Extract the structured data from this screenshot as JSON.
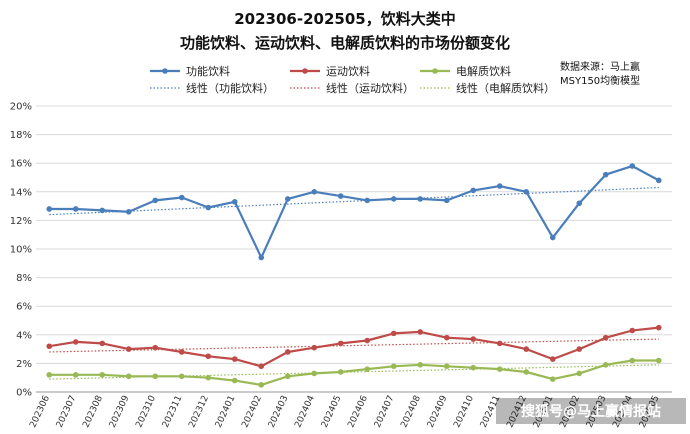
{
  "chart_data": {
    "type": "line",
    "title_line1": "202306-202505，饮料大类中",
    "title_line2": "功能饮料、运动饮料、电解质饮料的市场份额变化",
    "source_line1": "数据来源：马上赢",
    "source_line2": "MSY150均衡模型",
    "watermark": "搜狐号@马上赢情报站",
    "xlabel": "",
    "ylabel": "",
    "ylim": [
      0,
      20
    ],
    "y_ticks": [
      0,
      2,
      4,
      6,
      8,
      10,
      12,
      14,
      16,
      18,
      20
    ],
    "y_tick_labels": [
      "0%",
      "2%",
      "4%",
      "6%",
      "8%",
      "10%",
      "12%",
      "14%",
      "16%",
      "18%",
      "20%"
    ],
    "grid": true,
    "legend_position": "top",
    "categories": [
      "202306",
      "202307",
      "202308",
      "202309",
      "202310",
      "202311",
      "202312",
      "202401",
      "202402",
      "202403",
      "202404",
      "202405",
      "202406",
      "202407",
      "202408",
      "202409",
      "202410",
      "202411",
      "202412",
      "202501",
      "202502",
      "202503",
      "202504",
      "202505"
    ],
    "series": [
      {
        "name": "功能饮料",
        "color": "#4a7ebb",
        "values": [
          12.8,
          12.8,
          12.7,
          12.6,
          13.4,
          13.6,
          12.9,
          13.3,
          9.4,
          13.5,
          14.0,
          13.7,
          13.4,
          13.5,
          13.5,
          13.4,
          14.1,
          14.4,
          14.0,
          10.8,
          13.2,
          15.2,
          15.8,
          14.8
        ]
      },
      {
        "name": "运动饮料",
        "color": "#be4b48",
        "values": [
          3.2,
          3.5,
          3.4,
          3.0,
          3.1,
          2.8,
          2.5,
          2.3,
          1.8,
          2.8,
          3.1,
          3.4,
          3.6,
          4.1,
          4.2,
          3.8,
          3.7,
          3.4,
          3.0,
          2.3,
          3.0,
          3.8,
          4.3,
          4.5
        ]
      },
      {
        "name": "电解质饮料",
        "color": "#98b954",
        "values": [
          1.2,
          1.2,
          1.2,
          1.1,
          1.1,
          1.1,
          1.0,
          0.8,
          0.5,
          1.1,
          1.3,
          1.4,
          1.6,
          1.8,
          1.9,
          1.8,
          1.7,
          1.6,
          1.4,
          0.9,
          1.3,
          1.9,
          2.2,
          2.2
        ]
      }
    ],
    "trendlines": [
      {
        "name": "线性（功能饮料）",
        "color": "#4a7ebb",
        "start": 12.4,
        "end": 14.3
      },
      {
        "name": "线性（运动饮料）",
        "color": "#be4b48",
        "start": 2.8,
        "end": 3.7
      },
      {
        "name": "线性（电解质饮料）",
        "color": "#98b954",
        "start": 0.9,
        "end": 1.9
      }
    ]
  }
}
